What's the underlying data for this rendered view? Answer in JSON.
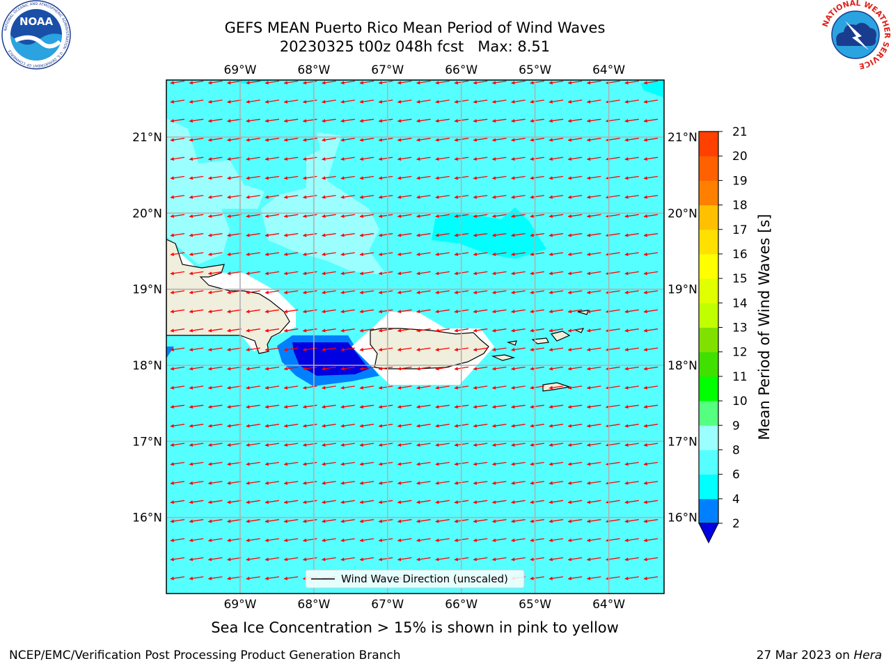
{
  "header": {
    "title_line1": "GEFS MEAN Puerto Rico Mean Period of Wind Waves",
    "title_line2": "20230325 t00z 048h fcst   Max: 8.51"
  },
  "logos": {
    "noaa": {
      "text": "NOAA",
      "ring_text": "NATIONAL OCEANIC AND ATMOSPHERIC ADMINISTRATION · U.S. DEPARTMENT OF COMMERCE"
    },
    "nws": {
      "ring_text": "NATIONAL WEATHER SERVICE"
    }
  },
  "map": {
    "lon_labels": [
      "69°W",
      "68°W",
      "67°W",
      "66°W",
      "65°W",
      "64°W"
    ],
    "lat_labels": [
      "21°N",
      "20°N",
      "19°N",
      "18°N",
      "17°N",
      "16°N"
    ],
    "lon_values": [
      -69,
      -68,
      -67,
      -66,
      -65,
      -64
    ],
    "lat_values": [
      21,
      20,
      19,
      18,
      17,
      16
    ],
    "extent": {
      "lon_min": -70.0,
      "lon_max": -63.25,
      "lat_min": 15.0,
      "lat_max": 21.75
    },
    "legend": "Wind Wave Direction (unscaled)",
    "colors": {
      "ocean_6_8": "#55ffff",
      "ocean_8_9": "#9bffff",
      "ocean_4_6": "#00ffff",
      "period_2_4": "#0080ff",
      "period_lt_2": "#0000e0",
      "land": "#f0eedc",
      "arrow": "#ff0000",
      "grid": "#b0b0b0"
    }
  },
  "colorbar": {
    "title": "Mean Period of Wind Waves [s]",
    "ticks": [
      "2",
      "4",
      "6",
      "8",
      "9",
      "10",
      "11",
      "12",
      "13",
      "14",
      "15",
      "16",
      "17",
      "18",
      "19",
      "20",
      "21"
    ],
    "colors": [
      "#0080ff",
      "#00ffff",
      "#55ffff",
      "#9bffff",
      "#55ff80",
      "#00ff00",
      "#40e000",
      "#80e000",
      "#c0ff00",
      "#e0ff00",
      "#ffff00",
      "#ffe000",
      "#ffc000",
      "#ff8000",
      "#ff6000",
      "#ff4000",
      "#ff0000"
    ],
    "under_color": "#0000e0"
  },
  "footer": {
    "note": "Sea Ice Concentration > 15% is shown in pink to yellow",
    "credit_left": "NCEP/EMC/Verification Post Processing Product Generation Branch",
    "credit_right_prefix": "27 Mar 2023 on ",
    "credit_right_machine": "Hera"
  }
}
